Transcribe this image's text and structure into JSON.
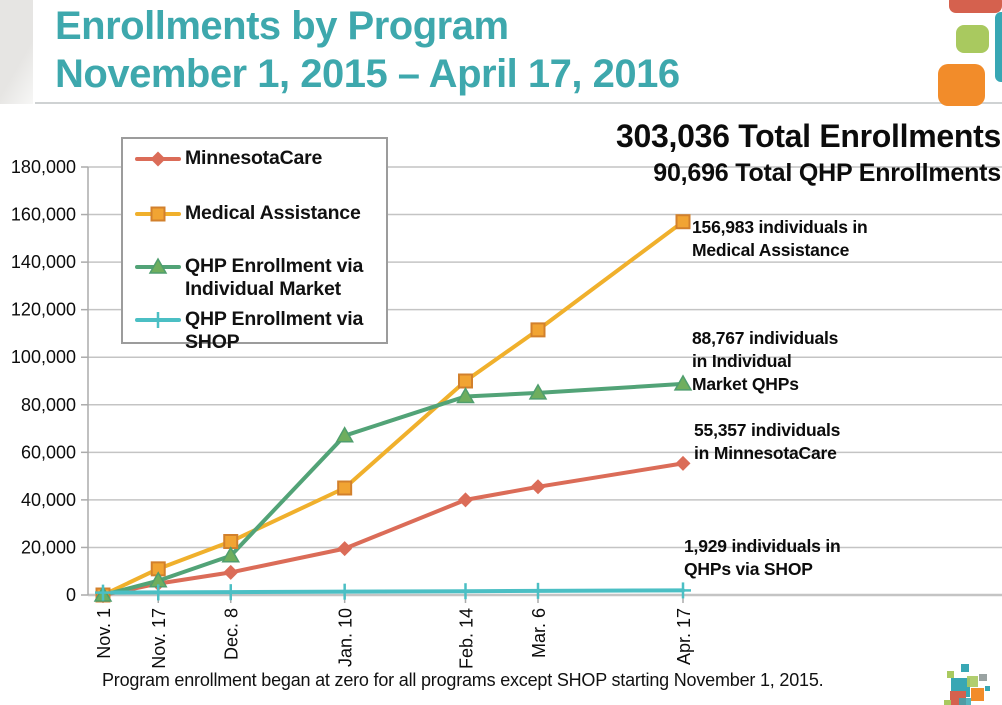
{
  "header": {
    "title_line1": "Enrollments by Program",
    "title_line2": "November 1, 2015 – April 17, 2016"
  },
  "totals": {
    "primary": "303,036 Total Enrollments",
    "secondary": "90,696 Total QHP Enrollments"
  },
  "callouts": [
    {
      "text": "156,983 individuals in\nMedical Assistance"
    },
    {
      "text": "88,767 individuals\nin Individual\nMarket QHPs"
    },
    {
      "text": "55,357 individuals\nin MinnesotaCare"
    },
    {
      "text": "1,929 individuals in\nQHPs via SHOP"
    }
  ],
  "footer": {
    "note": "Program enrollment began at zero for all programs except SHOP starting November 1, 2015."
  },
  "colors": {
    "title-teal": "#3ea8ad",
    "grid": "#c4c4c4",
    "axis": "#ababab",
    "deco-red": "#d5614e",
    "deco-green": "#a9c95f",
    "deco-orange": "#f28c2a",
    "deco-teal": "#38a7b4"
  },
  "chart_data": {
    "type": "line",
    "title": "Enrollments by Program, November 1, 2015 – April 17, 2016",
    "categories": [
      "Nov. 1",
      "Nov. 17",
      "Dec. 8",
      "Jan. 10",
      "Feb. 14",
      "Mar. 6",
      "Apr. 17"
    ],
    "x_days": [
      0,
      16,
      37,
      70,
      105,
      126,
      168
    ],
    "ylim": [
      0,
      180000
    ],
    "grid": true,
    "legend_position": "upper-left-box",
    "y_ticks": [
      {
        "value": 0,
        "label": "0"
      },
      {
        "value": 20000,
        "label": "20,000"
      },
      {
        "value": 40000,
        "label": "40,000"
      },
      {
        "value": 60000,
        "label": "60,000"
      },
      {
        "value": 80000,
        "label": "80,000"
      },
      {
        "value": 100000,
        "label": "100,000"
      },
      {
        "value": 120000,
        "label": "120,000"
      },
      {
        "value": 140000,
        "label": "140,000"
      },
      {
        "value": 160000,
        "label": "160,000"
      },
      {
        "value": 180000,
        "label": "180,000"
      }
    ],
    "series": [
      {
        "name": "MinnesotaCare",
        "marker": "diamond",
        "color": "#db6c58",
        "marker_fill": "#db6c58",
        "marker_stroke": "#db6c58",
        "values": [
          0,
          4800,
          9500,
          19500,
          40000,
          45500,
          55357
        ],
        "final_value_label": "55,357"
      },
      {
        "name": "Medical Assistance",
        "marker": "square",
        "color": "#f0b02c",
        "marker_fill": "#f1a433",
        "marker_stroke": "#d2802c",
        "values": [
          0,
          11000,
          22500,
          45000,
          90000,
          111500,
          156983
        ],
        "final_value_label": "156,983"
      },
      {
        "name": "QHP Enrollment via Individual Market",
        "marker": "triangle",
        "color": "#52a377",
        "marker_fill": "#6fae5e",
        "marker_stroke": "#4f9e6e",
        "values": [
          0,
          6000,
          16500,
          67000,
          83500,
          85000,
          88767
        ],
        "final_value_label": "88,767"
      },
      {
        "name": "QHP Enrollment via SHOP",
        "marker": "plus",
        "color": "#4bbfc4",
        "marker_fill": "#4bbfc4",
        "marker_stroke": "#4bbfc4",
        "values": [
          1000,
          1100,
          1200,
          1400,
          1600,
          1750,
          1929
        ],
        "final_value_label": "1,929"
      }
    ]
  }
}
